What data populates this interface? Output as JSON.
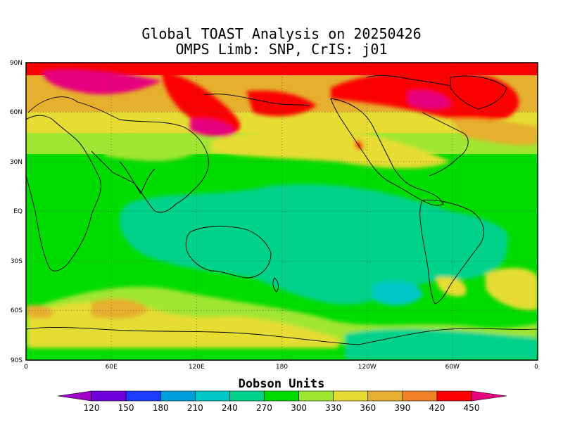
{
  "title": {
    "line1": "Global TOAST Analysis on 20250426",
    "line2": "OMPS Limb: SNP,  CrIS: j01"
  },
  "axes": {
    "y_ticks": [
      "90N",
      "60N",
      "30N",
      "EQ",
      "30S",
      "60S",
      "90S"
    ],
    "x_ticks": [
      "0",
      "60E",
      "120E",
      "180",
      "120W",
      "60W",
      "0"
    ],
    "lat_range": [
      -90,
      90
    ],
    "lon_range": [
      0,
      360
    ],
    "grid": "dotted"
  },
  "colorbar": {
    "title": "Dobson Units",
    "levels": [
      "120",
      "150",
      "180",
      "210",
      "240",
      "270",
      "300",
      "330",
      "360",
      "390",
      "420",
      "450"
    ],
    "colors": [
      "#a000c8",
      "#6e00dc",
      "#1e3cff",
      "#00a0dc",
      "#00c8c8",
      "#00d28c",
      "#00dc00",
      "#a0e632",
      "#e6dc32",
      "#e6af2d",
      "#f08228",
      "#fa0000",
      "#e6007d"
    ]
  },
  "map": {
    "projection": "cylindrical equidistant",
    "field": "total column ozone",
    "colors": {
      "background": "#00dc00",
      "tropics": "#00d28c",
      "midlat": "#a0e632",
      "high": "#e6dc32",
      "higher": "#e6af2d",
      "orange": "#f08228",
      "red": "#fa0000",
      "magenta": "#e6007d",
      "cyan": "#00c8c8",
      "coastline": "#000000"
    }
  }
}
